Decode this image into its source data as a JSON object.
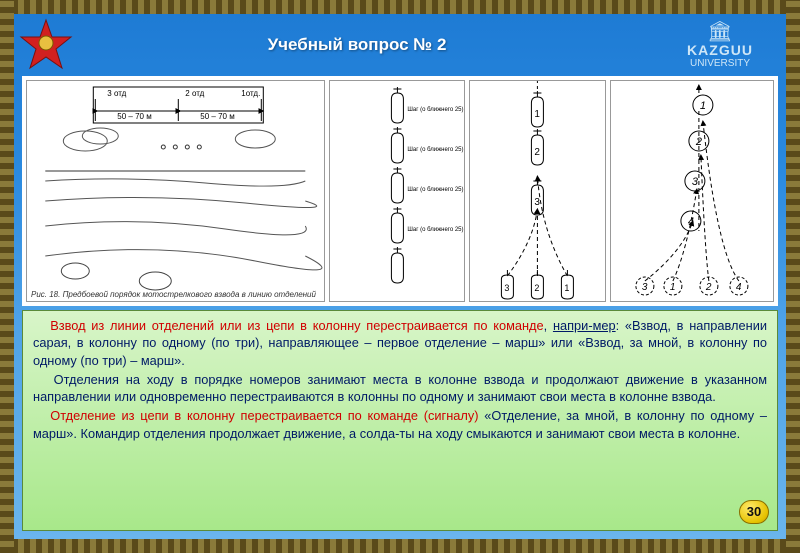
{
  "colors": {
    "slide_bg_top": "#1e7bd4",
    "slide_bg_bottom": "#6ab5ed",
    "text_bg_top": "#d8f5c9",
    "text_bg_bottom": "#a8e88a",
    "text_main": "#001a66",
    "text_red": "#d00000",
    "border_greek": "#5a4a1a",
    "pagenum_bg": "#e6c200"
  },
  "header": {
    "title": "Учебный вопрос № 2",
    "university_name": "KAZGUU",
    "university_sub": "UNIVERSITY"
  },
  "diagrams": {
    "panel1": {
      "labels": {
        "sq3": "3 отд",
        "sq2": "2 отд",
        "sq1": "1отд.",
        "dist": "50 – 70 м"
      },
      "caption": "Рис. 18. Предбоевой порядок мотострелкового взвода в линию отделений"
    },
    "panel2": {
      "count": 5
    },
    "panel3": {
      "nodes": [
        "1",
        "2",
        "3",
        "3",
        "2",
        "1"
      ]
    },
    "panel4": {
      "nodes": [
        "1",
        "2",
        "3",
        "4",
        "3",
        "1",
        "2",
        "4"
      ]
    }
  },
  "text": {
    "p1_a": "Взвод из линии отделений или из цепи в колонну перестраивается ",
    "p1_b": "по команде",
    "p1_c": ", ",
    "p1_d": "напри-мер",
    "p1_e": ": «Взвод, в направлении сарая, в колонну по одному (по три), направляющее – первое отделение – марш» или «Взвод, за мной, в колонну по одному (по три) – марш».",
    "p2": "Отделения на ходу в порядке номеров занимают места в колонне взвода и продолжают движение в указанном направлении или одновременно перестраиваются в колонны по одному и занимают свои места в колонне взвода.",
    "p3_a": "Отделение из цепи в колонну перестраивается ",
    "p3_b": "по команде (сигналу)",
    "p3_c": " «Отделение, за мной, в колонну по одному – марш». Командир отделения продолжает движение, а солда-ты на ходу смыкаются и занимают свои места в колонне."
  },
  "pagenum": "30"
}
